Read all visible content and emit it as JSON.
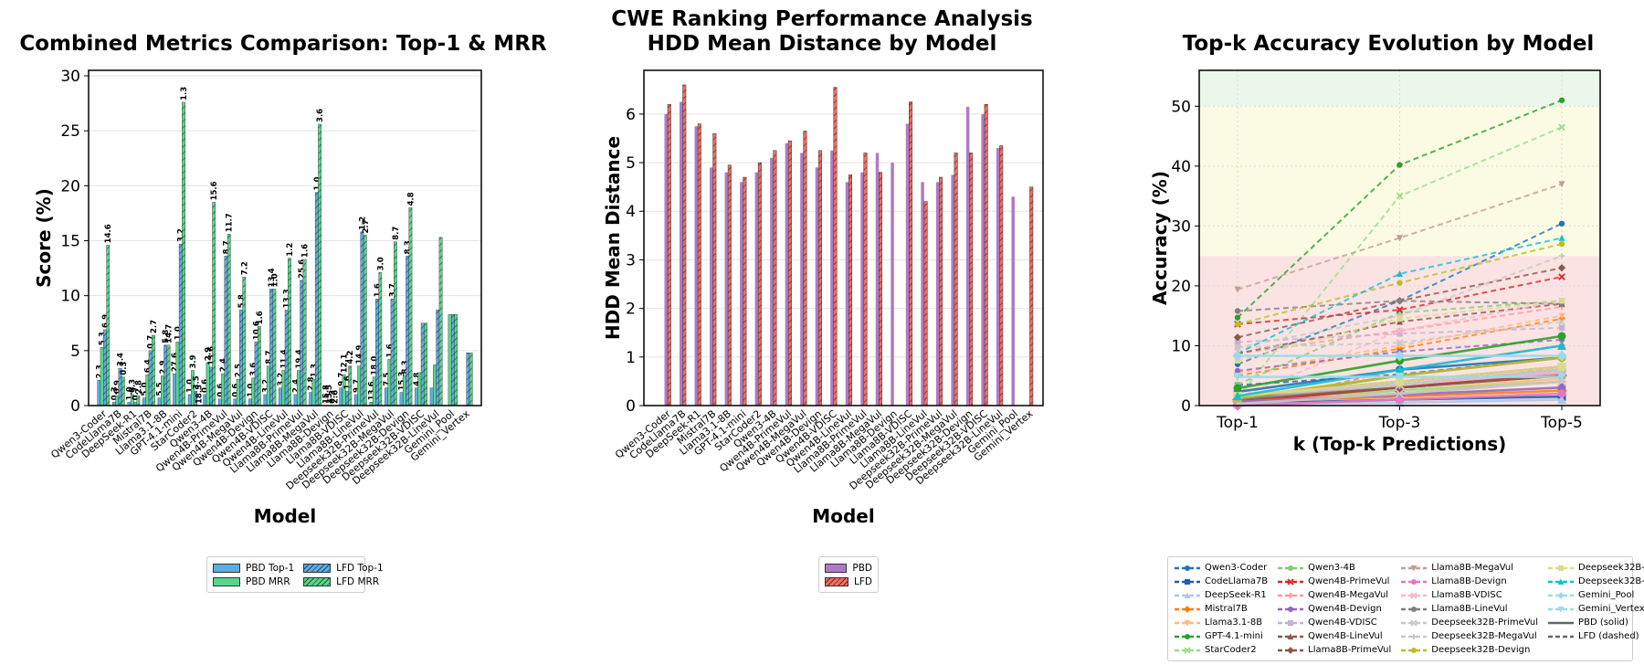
{
  "suptitle": "CWE Ranking Performance Analysis",
  "chart_data": [
    {
      "type": "bar",
      "title": "Combined Metrics Comparison: Top-1 & MRR",
      "xlabel": "Model",
      "ylabel": "Score (%)",
      "ylim": [
        0,
        30.5
      ],
      "yticks": [
        0,
        5,
        10,
        15,
        20,
        25,
        30
      ],
      "grid": "y",
      "legend_position": "below",
      "categories": [
        "Qwen3-Coder",
        "CodeLlama7B",
        "DeepSeek-R1",
        "Mistral7B",
        "Llama3.1-8B",
        "GPT-4.1-mini",
        "StarCoder2",
        "Qwen3-4B",
        "Qwen4B-PrimeVul",
        "Qwen4B-MegaVul",
        "Qwen4B-Devign",
        "Qwen4B-VDISC",
        "Qwen4B-LineVul",
        "Llama8B-PrimeVul",
        "Llama8B-MegaVul",
        "Llama8B-Devign",
        "Llama8B-VDISC",
        "Llama8B-LineVul",
        "Deepseek32B-PrimeVul",
        "Deepseek32B-MegaVul",
        "Deepseek32B-Devign",
        "Deepseek32B-VDISC",
        "Deepseek32B-LineVul",
        "Gemini_Pool",
        "Gemini_Vertex"
      ],
      "series": [
        {
          "name": "PBD Top-1",
          "color": "#5dade2",
          "hatch": false,
          "values": [
            2.3,
            0.3,
            0.3,
            0.7,
            0.7,
            2.9,
            1.0,
            1.0,
            0.6,
            0.6,
            0.6,
            1.0,
            1.6,
            1.0,
            1.2,
            0,
            1.6,
            1.0,
            0.3,
            1.6,
            1.2,
            1.6,
            1.6,
            0,
            null
          ]
        },
        {
          "name": "PBD MRR",
          "color": "#58d68d",
          "hatch": false,
          "values": [
            5.3,
            0.9,
            1.0,
            2.8,
            2.7,
            5.8,
            3.2,
            3.9,
            2.9,
            2.4,
            2.5,
            3.6,
            3.2,
            3.2,
            2.4,
            0,
            2.8,
            3.6,
            2.6,
            4.2,
            2.7,
            3.0,
            3.7,
            8.3,
            null
          ]
        },
        {
          "name": "LFD Top-1",
          "color": "#5dade2",
          "hatch": true,
          "values": [
            6.9,
            3.4,
            0.3,
            5.0,
            5.5,
            14.7,
            1.3,
            3.5,
            13.6,
            8.7,
            5.8,
            10.6,
            8.7,
            11.4,
            19.4,
            0,
            1.3,
            15.8,
            9.7,
            9.7,
            13.6,
            7.5,
            8.7,
            8.3,
            4.8
          ]
        },
        {
          "name": "LFD MRR",
          "color": "#58d68d",
          "hatch": true,
          "values": [
            14.6,
            2.6,
            0.9,
            6.4,
            5.5,
            27.6,
            0,
            18.5,
            15.6,
            11.7,
            7.2,
            10.6,
            13.4,
            13.3,
            25.6,
            0,
            3.6,
            15.5,
            12.1,
            14.9,
            18.0,
            7.5,
            15.3,
            8.3,
            4.8
          ]
        }
      ],
      "data_labels": [
        "2.3",
        "5.3",
        "6.9",
        "14.6",
        "0.3",
        "0.9",
        "3.4",
        "0.3",
        "1.0",
        "0.3",
        "0.7",
        "2.8",
        "5.0",
        "6.4",
        "0.7",
        "2.7",
        "5.5",
        "2.9",
        "5.8",
        "14.7",
        "27.6",
        "1.0",
        "3.2",
        "1.3",
        "1.0",
        "3.9",
        "3.5",
        "18.5",
        "0.6",
        "2.9",
        "13.6",
        "15.6",
        "0.6",
        "2.4",
        "8.7",
        "11.7",
        "0.6",
        "2.5",
        "5.8",
        "7.2",
        "1.0",
        "3.6",
        "10.6",
        "1.6",
        "3.2",
        "8.7",
        "13.4",
        "1.0",
        "3.2",
        "11.4",
        "13.3",
        "1.2",
        "2.4",
        "19.4",
        "25.6",
        "1.6",
        "2.8",
        "1.3",
        "1.0",
        "3.6",
        "15.8",
        "15.5",
        "0.3",
        "2.6",
        "9.7",
        "12.1",
        "1.6",
        "4.2",
        "9.7",
        "14.9",
        "1.2",
        "2.7",
        "13.6",
        "18.0",
        "1.6",
        "3.0",
        "7.5",
        "1.6",
        "3.7",
        "8.7",
        "15.3",
        "8.3",
        "8.3",
        "4.8",
        "4.8"
      ]
    },
    {
      "type": "bar",
      "title": "HDD Mean Distance by Model",
      "xlabel": "Model",
      "ylabel": "HDD Mean Distance",
      "ylim": [
        0,
        6.9
      ],
      "yticks": [
        0,
        1,
        2,
        3,
        4,
        5,
        6
      ],
      "grid": "y",
      "legend_position": "below",
      "categories": [
        "Qwen3-Coder",
        "CodeLlama7B",
        "DeepSeek-R1",
        "Mistral7B",
        "Llama3.1-8B",
        "GPT-4.1-mini",
        "StarCoder2",
        "Qwen3-4B",
        "Qwen4B-PrimeVul",
        "Qwen4B-MegaVul",
        "Qwen4B-Devign",
        "Qwen4B-VDISC",
        "Qwen4B-LineVul",
        "Llama8B-PrimeVul",
        "Llama8B-MegaVul",
        "Llama8B-Devign",
        "Llama8B-VDISC",
        "Llama8B-LineVul",
        "Deepseek32B-PrimeVul",
        "Deepseek32B-MegaVul",
        "Deepseek32B-Devign",
        "Deepseek32B-VDISC",
        "Deepseek32B-LineVul",
        "Gemini_Pool",
        "Gemini_Vertex"
      ],
      "series": [
        {
          "name": "PBD",
          "color": "#af7ac5",
          "hatch": false,
          "values": [
            6.0,
            6.25,
            5.75,
            4.9,
            4.8,
            4.6,
            4.8,
            5.1,
            5.4,
            5.2,
            4.9,
            5.25,
            4.6,
            4.8,
            5.2,
            5.0,
            5.8,
            4.6,
            4.6,
            4.75,
            6.15,
            6.0,
            5.3,
            4.3,
            null
          ]
        },
        {
          "name": "LFD",
          "color": "#ec7063",
          "hatch": true,
          "values": [
            6.2,
            6.6,
            5.8,
            5.6,
            4.95,
            4.7,
            5.0,
            5.25,
            5.45,
            5.65,
            5.25,
            6.55,
            4.75,
            5.2,
            4.8,
            null,
            6.25,
            4.2,
            4.7,
            5.2,
            5.2,
            6.2,
            5.35,
            null,
            4.5
          ]
        }
      ]
    },
    {
      "type": "line",
      "title": "Top-k Accuracy Evolution by Model",
      "xlabel": "k (Top-k Predictions)",
      "ylabel": "Accuracy (%)",
      "categories": [
        "Top-1",
        "Top-3",
        "Top-5"
      ],
      "ylim": [
        0,
        56
      ],
      "yticks": [
        0,
        10,
        20,
        30,
        40,
        50
      ],
      "grid": "both",
      "legend_position": "below",
      "series": [
        {
          "name": "Qwen3-Coder",
          "color": "#1f77b4",
          "marker": "o",
          "pbd": [
            2.3,
            6.0,
            8.0
          ],
          "lfd": [
            6.9,
            17.5,
            30.4
          ]
        },
        {
          "name": "CodeLlama7B",
          "color": "#1f5fa8",
          "marker": "s",
          "pbd": [
            0.3,
            1.0,
            1.5
          ],
          "lfd": [
            3.4,
            5.2,
            8.0
          ]
        },
        {
          "name": "DeepSeek-R1",
          "color": "#aec7e8",
          "marker": "^",
          "pbd": [
            0.3,
            0.5,
            1.0
          ],
          "lfd": [
            0.3,
            2.5,
            6.5
          ]
        },
        {
          "name": "Mistral7B",
          "color": "#ff7f0e",
          "marker": "D",
          "pbd": [
            0.7,
            1.5,
            2.5
          ],
          "lfd": [
            5.0,
            9.5,
            14.5
          ]
        },
        {
          "name": "Llama3.1-8B",
          "color": "#ffbb78",
          "marker": "v",
          "pbd": [
            0.7,
            2.5,
            4.5
          ],
          "lfd": [
            5.5,
            10.0,
            15.0
          ]
        },
        {
          "name": "GPT-4.1-mini",
          "color": "#2ca02c",
          "marker": "o",
          "pbd": [
            2.9,
            7.5,
            11.6
          ],
          "lfd": [
            14.7,
            40.2,
            51.0
          ]
        },
        {
          "name": "StarCoder2",
          "color": "#98df8a",
          "marker": "x",
          "pbd": [
            1.0,
            2.5,
            4.0
          ],
          "lfd": [
            1.3,
            35.0,
            46.5
          ]
        },
        {
          "name": "Qwen3-4B",
          "color": "#7fcf6f",
          "marker": "o",
          "pbd": [
            1.0,
            3.0,
            5.0
          ],
          "lfd": [
            3.5,
            15.5,
            17.5
          ]
        },
        {
          "name": "Qwen4B-PrimeVul",
          "color": "#d62728",
          "marker": "x",
          "pbd": [
            0.6,
            3.0,
            5.5
          ],
          "lfd": [
            13.6,
            16.0,
            21.5
          ]
        },
        {
          "name": "Qwen4B-MegaVul",
          "color": "#ff9896",
          "marker": "+",
          "pbd": [
            0.6,
            2.0,
            4.0
          ],
          "lfd": [
            8.7,
            12.5,
            16.5
          ]
        },
        {
          "name": "Qwen4B-Devign",
          "color": "#9467bd",
          "marker": "o",
          "pbd": [
            0.6,
            1.8,
            3.0
          ],
          "lfd": [
            5.8,
            9.0,
            11.0
          ]
        },
        {
          "name": "Qwen4B-VDISC",
          "color": "#c5b0d5",
          "marker": "s",
          "pbd": [
            1.0,
            3.5,
            6.0
          ],
          "lfd": [
            10.6,
            12.0,
            13.0
          ]
        },
        {
          "name": "Qwen4B-LineVul",
          "color": "#8c564b",
          "marker": "^",
          "pbd": [
            1.6,
            4.0,
            6.5
          ],
          "lfd": [
            8.7,
            14.0,
            17.0
          ]
        },
        {
          "name": "Llama8B-PrimeVul",
          "color": "#8c564b",
          "marker": "D",
          "pbd": [
            1.0,
            3.0,
            5.0
          ],
          "lfd": [
            11.4,
            17.5,
            23.0
          ]
        },
        {
          "name": "Llama8B-MegaVul",
          "color": "#c49c94",
          "marker": "v",
          "pbd": [
            1.2,
            3.5,
            6.0
          ],
          "lfd": [
            19.4,
            28.0,
            37.0
          ]
        },
        {
          "name": "Llama8B-Devign",
          "color": "#e377c2",
          "marker": "o",
          "pbd": [
            0.0,
            1.0,
            2.0
          ],
          "lfd": [
            0.0,
            6.0,
            10.0
          ]
        },
        {
          "name": "Llama8B-VDISC",
          "color": "#f7b6d2",
          "marker": "x",
          "pbd": [
            1.6,
            3.5,
            5.5
          ],
          "lfd": [
            1.3,
            12.5,
            17.5
          ]
        },
        {
          "name": "Llama8B-LineVul",
          "color": "#7f7f7f",
          "marker": "o",
          "pbd": [
            1.0,
            5.0,
            8.0
          ],
          "lfd": [
            15.8,
            17.5,
            17.0
          ]
        },
        {
          "name": "Deepseek32B-PrimeVul",
          "color": "#c7c7c7",
          "marker": "x",
          "pbd": [
            0.3,
            2.0,
            4.0
          ],
          "lfd": [
            9.7,
            10.5,
            14.0
          ]
        },
        {
          "name": "Deepseek32B-MegaVul",
          "color": "#c7c7c7",
          "marker": "+",
          "pbd": [
            1.6,
            3.5,
            6.0
          ],
          "lfd": [
            9.7,
            15.0,
            25.0
          ]
        },
        {
          "name": "Deepseek32B-Devign",
          "color": "#bcbd22",
          "marker": "o",
          "pbd": [
            1.2,
            5.0,
            8.0
          ],
          "lfd": [
            13.6,
            20.5,
            27.0
          ]
        },
        {
          "name": "Deepseek32B-VDISC",
          "color": "#dbdb8d",
          "marker": "s",
          "pbd": [
            1.6,
            4.0,
            6.5
          ],
          "lfd": [
            7.5,
            14.5,
            17.5
          ]
        },
        {
          "name": "Deepseek32B-LineVul",
          "color": "#17becf",
          "marker": "^",
          "pbd": [
            1.6,
            6.0,
            10.0
          ],
          "lfd": [
            8.7,
            22.0,
            28.0
          ]
        },
        {
          "name": "Gemini_Pool",
          "color": "#9edae5",
          "marker": "D",
          "pbd": [
            8.3,
            8.3,
            8.3
          ],
          "lfd": [
            8.3,
            8.3,
            8.3
          ]
        },
        {
          "name": "Gemini_Vertex",
          "color": "#9edae5",
          "marker": "v",
          "pbd": [
            4.8,
            4.8,
            4.8
          ],
          "lfd": [
            4.8,
            4.8,
            4.8
          ]
        }
      ],
      "extra_legend": [
        "PBD (solid)",
        "LFD (dashed)"
      ],
      "bands": [
        {
          "from": 0,
          "to": 25,
          "color": "#fbe3e3"
        },
        {
          "from": 25,
          "to": 50,
          "color": "#fbfbe3"
        },
        {
          "from": 50,
          "to": 56,
          "color": "#eaf7ea"
        }
      ]
    }
  ]
}
